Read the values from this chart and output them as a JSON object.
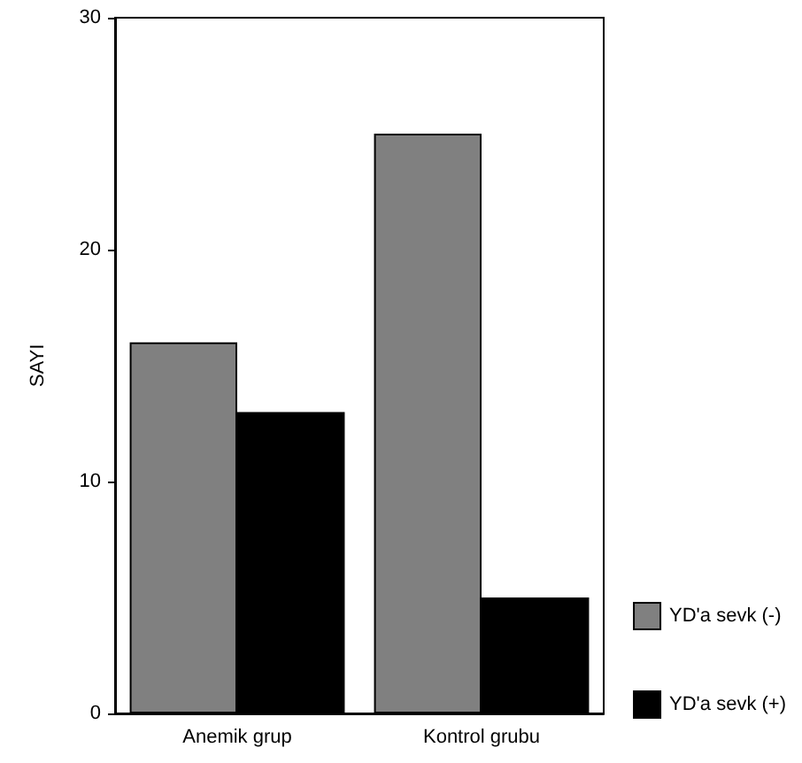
{
  "chart_data": {
    "type": "bar",
    "ylabel": "SAYI",
    "categories": [
      "Anemik grup",
      "Kontrol grubu"
    ],
    "series": [
      {
        "name": "YD'a sevk (-)",
        "color": "#808080",
        "values": [
          16,
          25
        ]
      },
      {
        "name": "YD'a sevk (+)",
        "color": "#000000",
        "values": [
          13,
          5
        ]
      }
    ],
    "ylim": [
      0,
      30
    ],
    "yticks": [
      0,
      10,
      20,
      30
    ],
    "grid": false,
    "legend": "bottom right"
  }
}
